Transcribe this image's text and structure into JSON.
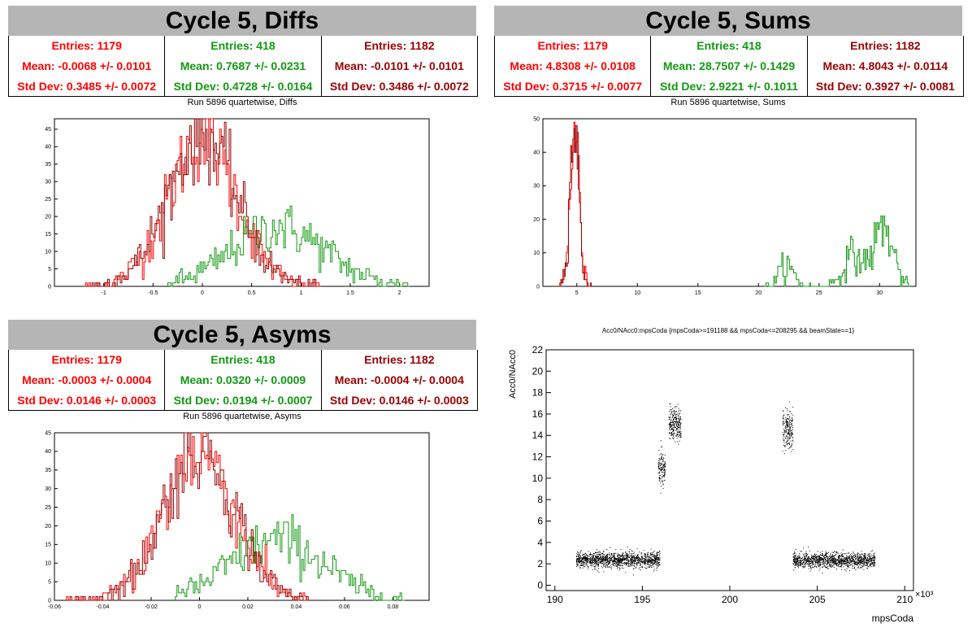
{
  "panels": {
    "diffs": {
      "title": "Cycle 5, Diffs",
      "subtitle": "Run 5896 quartetwise, Diffs",
      "stats": [
        {
          "entries": "Entries: 1179",
          "mean": "Mean: -0.0068 +/- 0.0101",
          "std": "Std Dev: 0.3485 +/- 0.0072",
          "color": "#ff0000"
        },
        {
          "entries": "Entries: 418",
          "mean": "Mean: 0.7687 +/- 0.0231",
          "std": "Std Dev: 0.4728 +/- 0.0164",
          "color": "#119911"
        },
        {
          "entries": "Entries: 1182",
          "mean": "Mean: -0.0101 +/- 0.0101",
          "std": "Std Dev: 0.3486 +/- 0.0072",
          "color": "#990000"
        }
      ]
    },
    "sums": {
      "title": "Cycle 5, Sums",
      "subtitle": "Run 5896 quartetwise, Sums",
      "stats": [
        {
          "entries": "Entries: 1179",
          "mean": "Mean: 4.8308 +/- 0.0108",
          "std": "Std Dev: 0.3715 +/- 0.0077",
          "color": "#ff0000"
        },
        {
          "entries": "Entries: 418",
          "mean": "Mean: 28.7507 +/- 0.1429",
          "std": "Std Dev: 2.9221 +/- 0.1011",
          "color": "#119911"
        },
        {
          "entries": "Entries: 1182",
          "mean": "Mean: 4.8043 +/- 0.0114",
          "std": "Std Dev: 0.3927 +/- 0.0081",
          "color": "#990000"
        }
      ]
    },
    "asyms": {
      "title": "Cycle 5, Asyms",
      "subtitle": "Run 5896 quartetwise, Asyms",
      "stats": [
        {
          "entries": "Entries: 1179",
          "mean": "Mean: -0.0003 +/- 0.0004",
          "std": "Std Dev: 0.0146 +/- 0.0003",
          "color": "#ff0000"
        },
        {
          "entries": "Entries: 418",
          "mean": "Mean: 0.0320 +/- 0.0009",
          "std": "Std Dev: 0.0194 +/- 0.0007",
          "color": "#119911"
        },
        {
          "entries": "Entries: 1182",
          "mean": "Mean: -0.0004 +/- 0.0004",
          "std": "Std Dev: 0.0146 +/- 0.0003",
          "color": "#990000"
        }
      ]
    },
    "scatter": {
      "title": "Acc0/NAcc0:mpsCoda {mpsCoda>=191188 && mpsCoda<=208295 && beamState==1}"
    }
  },
  "chart_data": [
    {
      "type": "bar",
      "id": "diffs",
      "xlim": [
        -1.5,
        2.3
      ],
      "ylim": [
        0,
        48
      ],
      "xticks": [
        -1,
        -0.5,
        0,
        0.5,
        1,
        1.5,
        2
      ],
      "xtick_labels": [
        "-1",
        "-0.5",
        "0",
        "0.5",
        "1",
        "1.5",
        "2"
      ],
      "yticks": [
        0,
        5,
        10,
        15,
        20,
        25,
        30,
        35,
        40,
        45
      ],
      "ytick_labels": [
        "0",
        "5",
        "10",
        "15",
        "20",
        "25",
        "30",
        "35",
        "40",
        "45"
      ],
      "series": [
        {
          "color": "#ff0000",
          "mean": 0,
          "std": 0.3485,
          "peak": 42,
          "x0": -1.2,
          "x1": 1.2,
          "bins": 150
        },
        {
          "color": "#119911",
          "mean": 0.77,
          "std": 0.47,
          "peak": 17,
          "x0": -0.35,
          "x1": 2.1,
          "bins": 150
        },
        {
          "color": "#990000",
          "mean": 0,
          "std": 0.3486,
          "peak": 43,
          "x0": -1.2,
          "x1": 1.2,
          "bins": 150
        }
      ]
    },
    {
      "type": "bar",
      "id": "sums",
      "xlim": [
        2.2,
        33
      ],
      "ylim": [
        0,
        50
      ],
      "xticks": [
        5,
        10,
        15,
        20,
        25,
        30
      ],
      "xtick_labels": [
        "5",
        "10",
        "15",
        "20",
        "25",
        "30"
      ],
      "yticks": [
        0,
        10,
        20,
        30,
        40,
        50
      ],
      "ytick_labels": [
        "0",
        "10",
        "20",
        "30",
        "40",
        "50"
      ],
      "series": [
        {
          "color": "#ff0000",
          "mean": 4.83,
          "std": 0.37,
          "peak": 46,
          "x0": 3.5,
          "x1": 6.2,
          "bins": 30
        },
        {
          "color": "#990000",
          "mean": 4.8,
          "std": 0.39,
          "peak": 47,
          "x0": 3.5,
          "x1": 6.2,
          "bins": 30
        },
        {
          "color": "#119911",
          "mixture": [
            {
              "mean": 22.3,
              "std": 0.6,
              "peak": 6
            },
            {
              "mean": 27.8,
              "std": 0.8,
              "peak": 9
            },
            {
              "mean": 30.3,
              "std": 0.8,
              "peak": 18
            }
          ],
          "x0": 20.5,
          "x1": 32.5,
          "bins": 110
        }
      ]
    },
    {
      "type": "bar",
      "id": "asyms",
      "xlim": [
        -0.06,
        0.095
      ],
      "ylim": [
        0,
        45
      ],
      "xticks": [
        -0.06,
        -0.04,
        -0.02,
        0,
        0.02,
        0.04,
        0.06,
        0.08
      ],
      "xtick_labels": [
        "-0.06",
        "-0.04",
        "-0.02",
        "0",
        "0.02",
        "0.04",
        "0.06",
        "0.08"
      ],
      "yticks": [
        0,
        5,
        10,
        15,
        20,
        25,
        30,
        35,
        40,
        45
      ],
      "ytick_labels": [
        "0",
        "5",
        "10",
        "15",
        "20",
        "25",
        "30",
        "35",
        "40",
        "45"
      ],
      "series": [
        {
          "color": "#ff0000",
          "mean": 0,
          "std": 0.0146,
          "peak": 40,
          "x0": -0.055,
          "x1": 0.045,
          "bins": 140
        },
        {
          "color": "#119911",
          "mean": 0.032,
          "std": 0.0194,
          "peak": 16,
          "x0": -0.01,
          "x1": 0.085,
          "bins": 140
        },
        {
          "color": "#990000",
          "mean": 0,
          "std": 0.0146,
          "peak": 41,
          "x0": -0.055,
          "x1": 0.045,
          "bins": 140
        }
      ]
    },
    {
      "type": "scatter",
      "id": "scatter",
      "xlim": [
        189.5,
        210.5
      ],
      "ylim": [
        -0.5,
        22
      ],
      "xticks": [
        190,
        195,
        200,
        205,
        210
      ],
      "xtick_labels": [
        "190",
        "195",
        "200",
        "205",
        "210"
      ],
      "yticks": [
        0,
        2,
        4,
        6,
        8,
        10,
        12,
        14,
        16,
        18,
        20,
        22
      ],
      "ytick_labels": [
        "0",
        "2",
        "4",
        "6",
        "8",
        "10",
        "12",
        "14",
        "16",
        "18",
        "20",
        "22"
      ],
      "xlabel": "mpsCoda",
      "ylabel": "Acc0/NAcc0",
      "x_exponent": "×10³",
      "clusters": [
        {
          "x": [
            191.2,
            196.0
          ],
          "y": 2.4,
          "sy": 0.35,
          "n": 1400
        },
        {
          "x": [
            203.6,
            208.3
          ],
          "y": 2.35,
          "sy": 0.35,
          "n": 1300
        },
        {
          "x": [
            195.9,
            196.3
          ],
          "y": 11.0,
          "sy": 0.8,
          "n": 140
        },
        {
          "x": [
            196.5,
            197.2
          ],
          "y": 15.1,
          "sy": 0.7,
          "n": 260
        },
        {
          "x": [
            203.0,
            203.6
          ],
          "y": 14.6,
          "sy": 0.9,
          "n": 220
        }
      ]
    }
  ]
}
